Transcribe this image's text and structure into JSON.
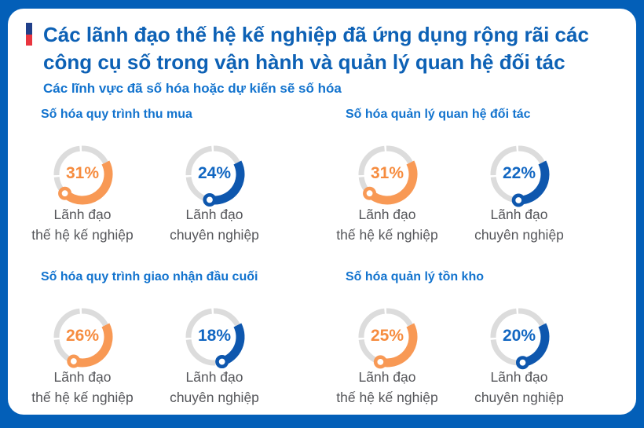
{
  "title": {
    "line1": "Các lãnh đạo thế hệ kế nghiệp đã ứng dụng rộng rãi các",
    "line2": "công cụ số trong vận hành và quản lý quan hệ đối tác"
  },
  "subtitle": "Các lĩnh vực đã số hóa hoặc dự kiến sẽ số hóa",
  "sections": [
    {
      "heading": "Số hóa quy trình thu mua",
      "charts": [
        {
          "value": 31,
          "value_label": "31%",
          "color": "orange",
          "label_line1": "Lãnh đạo",
          "label_line2": "thế hệ kế nghiệp"
        },
        {
          "value": 24,
          "value_label": "24%",
          "color": "blue",
          "label_line1": "Lãnh đạo",
          "label_line2": "chuyên nghiệp"
        }
      ]
    },
    {
      "heading": "Số hóa quản lý quan hệ đối tác",
      "charts": [
        {
          "value": 31,
          "value_label": "31%",
          "color": "orange",
          "label_line1": "Lãnh đạo",
          "label_line2": "thế hệ kế nghiệp"
        },
        {
          "value": 22,
          "value_label": "22%",
          "color": "blue",
          "label_line1": "Lãnh đạo",
          "label_line2": "chuyên nghiệp"
        }
      ]
    },
    {
      "heading": "Số hóa quy trình giao nhận đầu cuối",
      "charts": [
        {
          "value": 26,
          "value_label": "26%",
          "color": "orange",
          "label_line1": "Lãnh đạo",
          "label_line2": "thế hệ kế nghiệp"
        },
        {
          "value": 18,
          "value_label": "18%",
          "color": "blue",
          "label_line1": "Lãnh đạo",
          "label_line2": "chuyên nghiệp"
        }
      ]
    },
    {
      "heading": "Số hóa quản lý tồn kho",
      "charts": [
        {
          "value": 25,
          "value_label": "25%",
          "color": "orange",
          "label_line1": "Lãnh đạo",
          "label_line2": "thế hệ kế nghiệp"
        },
        {
          "value": 20,
          "value_label": "20%",
          "color": "blue",
          "label_line1": "Lãnh đạo",
          "label_line2": "chuyên nghiệp"
        }
      ]
    }
  ],
  "colors": {
    "frame_blue": "#035FB8",
    "title_blue": "#0D61B5",
    "heading_blue": "#1273CE",
    "label_gray": "#55565A",
    "ring_gray": "#DCDCDC",
    "orange_arc": "#F89955",
    "orange_text": "#F68C3F",
    "blue_arc": "#0E57AE",
    "blue_text": "#1267C2",
    "accent_navy": "#20408A",
    "accent_red": "#E9353F"
  },
  "chart_data": [
    {
      "type": "pie",
      "title": "Số hóa quy trình thu mua",
      "categories": [
        "Lãnh đạo thế hệ kế nghiệp",
        "Lãnh đạo chuyên nghiệp"
      ],
      "values": [
        31,
        24
      ],
      "unit": "%",
      "style": "donut-gauge, gray track, orange and blue arcs with start dot"
    },
    {
      "type": "pie",
      "title": "Số hóa quản lý quan hệ đối tác",
      "categories": [
        "Lãnh đạo thế hệ kế nghiệp",
        "Lãnh đạo chuyên nghiệp"
      ],
      "values": [
        31,
        22
      ],
      "unit": "%",
      "style": "donut-gauge, gray track, orange and blue arcs with start dot"
    },
    {
      "type": "pie",
      "title": "Số hóa quy trình giao nhận đầu cuối",
      "categories": [
        "Lãnh đạo thế hệ kế nghiệp",
        "Lãnh đạo chuyên nghiệp"
      ],
      "values": [
        26,
        18
      ],
      "unit": "%",
      "style": "donut-gauge, gray track, orange and blue arcs with start dot"
    },
    {
      "type": "pie",
      "title": "Số hóa quản lý tồn kho",
      "categories": [
        "Lãnh đạo thế hệ kế nghiệp",
        "Lãnh đạo chuyên nghiệp"
      ],
      "values": [
        25,
        20
      ],
      "unit": "%",
      "style": "donut-gauge, gray track, orange and blue arcs with start dot"
    }
  ]
}
